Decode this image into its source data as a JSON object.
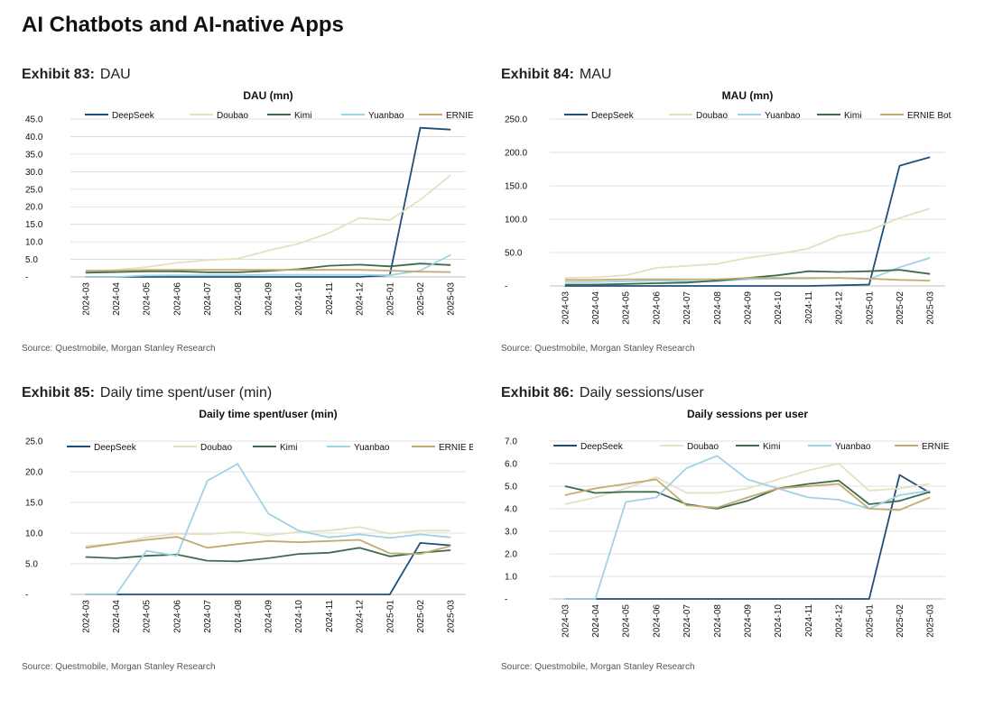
{
  "page": {
    "title": "AI Chatbots and AI-native Apps"
  },
  "colors": {
    "DeepSeek": "#1f4e79",
    "Doubao": "#e5e0c2",
    "Kimi": "#3f6b4d",
    "Yuanbao": "#9fd2e6",
    "ERNIE Bot": "#c2aa72"
  },
  "exhibits": [
    {
      "number": "Exhibit 83:",
      "title": "DAU",
      "source": "Source: Questmobile, Morgan Stanley Research"
    },
    {
      "number": "Exhibit 84:",
      "title": "MAU",
      "source": "Source: Questmobile, Morgan Stanley Research"
    },
    {
      "number": "Exhibit 85:",
      "title": "Daily time spent/user (min)",
      "source": "Source: Questmobile, Morgan Stanley Research"
    },
    {
      "number": "Exhibit 86:",
      "title": "Daily sessions/user",
      "source": "Source: Questmobile, Morgan Stanley Research"
    }
  ],
  "chart_data": [
    {
      "type": "line",
      "title": "DAU (mn)",
      "x": [
        "2024-03",
        "2024-04",
        "2024-05",
        "2024-06",
        "2024-07",
        "2024-08",
        "2024-09",
        "2024-10",
        "2024-11",
        "2024-12",
        "2025-01",
        "2025-02",
        "2025-03"
      ],
      "ylim": [
        0,
        45
      ],
      "yticks": [
        "-",
        "5.0",
        "10.0",
        "15.0",
        "20.0",
        "25.0",
        "30.0",
        "35.0",
        "40.0",
        "45.0"
      ],
      "grid": true,
      "legend": "top",
      "series": [
        {
          "name": "DeepSeek",
          "values": [
            0,
            0,
            0,
            0,
            0,
            0,
            0,
            0,
            0,
            0,
            0.5,
            42.5,
            42.0
          ]
        },
        {
          "name": "Doubao",
          "values": [
            1.5,
            2.0,
            2.8,
            4.0,
            4.8,
            5.2,
            7.5,
            9.5,
            12.5,
            16.8,
            16.2,
            22.0,
            29.0
          ]
        },
        {
          "name": "Kimi",
          "values": [
            1.2,
            1.4,
            1.6,
            1.6,
            1.3,
            1.3,
            1.7,
            2.2,
            3.2,
            3.5,
            3.0,
            3.8,
            3.4
          ]
        },
        {
          "name": "Yuanbao",
          "values": [
            0,
            0,
            0.4,
            0.5,
            0.5,
            0.5,
            0.6,
            0.6,
            0.6,
            0.6,
            0.5,
            1.8,
            6.3
          ]
        },
        {
          "name": "ERNIE Bot",
          "values": [
            1.8,
            1.8,
            2.0,
            2.0,
            2.0,
            2.0,
            2.0,
            2.0,
            2.0,
            2.0,
            1.8,
            1.5,
            1.4
          ]
        }
      ]
    },
    {
      "type": "line",
      "title": "MAU (mn)",
      "x": [
        "2024-03",
        "2024-04",
        "2024-05",
        "2024-06",
        "2024-07",
        "2024-08",
        "2024-09",
        "2024-10",
        "2024-11",
        "2024-12",
        "2025-01",
        "2025-02",
        "2025-03"
      ],
      "ylim": [
        0,
        250
      ],
      "yticks": [
        "-",
        "50.0",
        "100.0",
        "150.0",
        "200.0",
        "250.0"
      ],
      "grid": true,
      "legend": "top",
      "series": [
        {
          "name": "DeepSeek",
          "values": [
            0,
            0,
            0,
            0,
            0,
            0,
            0,
            0,
            0,
            1,
            2,
            180,
            193
          ]
        },
        {
          "name": "Doubao",
          "values": [
            12,
            13,
            16,
            27,
            30,
            33,
            42,
            48,
            56,
            75,
            83,
            102,
            116
          ]
        },
        {
          "name": "Yuanbao",
          "values": [
            6,
            6,
            7,
            8,
            7,
            7,
            10,
            11,
            11,
            12,
            10,
            28,
            42
          ]
        },
        {
          "name": "Kimi",
          "values": [
            2,
            2,
            3,
            4,
            5,
            8,
            12,
            16,
            22,
            21,
            22,
            24,
            18
          ]
        },
        {
          "name": "ERNIE Bot",
          "values": [
            9,
            9,
            10,
            10,
            10,
            10,
            12,
            12,
            12,
            12,
            11,
            9,
            8
          ]
        }
      ]
    },
    {
      "type": "line",
      "title": "Daily time spent/user (min)",
      "x": [
        "2024-03",
        "2024-04",
        "2024-05",
        "2024-06",
        "2024-07",
        "2024-08",
        "2024-09",
        "2024-10",
        "2024-11",
        "2024-12",
        "2025-01",
        "2025-02",
        "2025-03"
      ],
      "ylim": [
        0,
        25
      ],
      "yticks": [
        "-",
        "5.0",
        "10.0",
        "15.0",
        "20.0",
        "25.0"
      ],
      "grid": true,
      "legend": "top",
      "series": [
        {
          "name": "DeepSeek",
          "values": [
            0,
            0,
            0,
            0,
            0,
            0,
            0,
            0,
            0,
            0,
            0,
            8.4,
            8.0
          ]
        },
        {
          "name": "Doubao",
          "values": [
            7.9,
            8.3,
            9.3,
            9.9,
            9.8,
            10.2,
            9.6,
            10.2,
            10.4,
            11.0,
            9.9,
            10.4,
            10.4
          ]
        },
        {
          "name": "Kimi",
          "values": [
            6.1,
            5.9,
            6.3,
            6.5,
            5.5,
            5.4,
            5.9,
            6.6,
            6.8,
            7.6,
            6.2,
            6.8,
            7.2
          ]
        },
        {
          "name": "Yuanbao",
          "values": [
            0,
            0,
            7.1,
            6.3,
            18.5,
            21.3,
            13.2,
            10.4,
            9.3,
            9.8,
            9.2,
            9.8,
            9.3
          ]
        },
        {
          "name": "ERNIE Bot",
          "values": [
            7.6,
            8.3,
            8.9,
            9.4,
            7.6,
            8.2,
            8.7,
            8.5,
            8.7,
            8.9,
            6.7,
            6.6,
            7.9
          ]
        }
      ]
    },
    {
      "type": "line",
      "title": "Daily sessions per user",
      "x": [
        "2024-03",
        "2024-04",
        "2024-05",
        "2024-06",
        "2024-07",
        "2024-08",
        "2024-09",
        "2024-10",
        "2024-11",
        "2024-12",
        "2025-01",
        "2025-02",
        "2025-03"
      ],
      "ylim": [
        0,
        7
      ],
      "yticks": [
        "-",
        "1.0",
        "2.0",
        "3.0",
        "4.0",
        "5.0",
        "6.0",
        "7.0"
      ],
      "grid": true,
      "legend": "top",
      "series": [
        {
          "name": "DeepSeek",
          "values": [
            0,
            0,
            0,
            0,
            0,
            0,
            0,
            0,
            0,
            0,
            0,
            5.5,
            4.7
          ]
        },
        {
          "name": "Doubao",
          "values": [
            4.2,
            4.5,
            4.9,
            5.4,
            4.7,
            4.7,
            4.9,
            5.3,
            5.7,
            6.0,
            4.8,
            4.9,
            5.1
          ]
        },
        {
          "name": "Kimi",
          "values": [
            5.0,
            4.7,
            4.75,
            4.75,
            4.2,
            4.0,
            4.35,
            4.9,
            5.1,
            5.25,
            4.2,
            4.35,
            4.75
          ]
        },
        {
          "name": "Yuanbao",
          "values": [
            0,
            0,
            4.3,
            4.5,
            5.8,
            6.35,
            5.3,
            4.9,
            4.5,
            4.4,
            4.0,
            4.6,
            4.8
          ]
        },
        {
          "name": "ERNIE Bot",
          "values": [
            4.6,
            4.9,
            5.1,
            5.3,
            4.15,
            4.05,
            4.5,
            4.9,
            5.0,
            5.1,
            4.0,
            3.95,
            4.5
          ]
        }
      ]
    }
  ]
}
